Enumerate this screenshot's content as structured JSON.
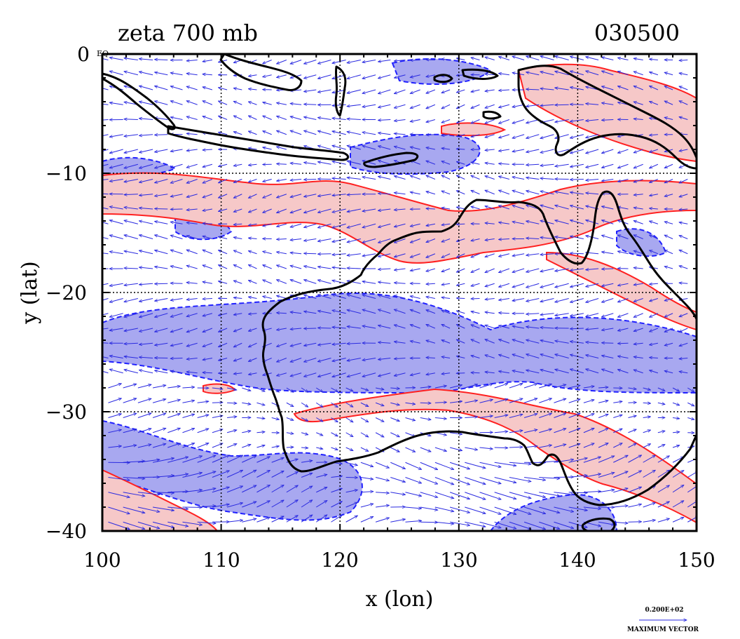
{
  "header": {
    "title": "zeta 700 mb",
    "datecode": "030500"
  },
  "map": {
    "lon_range": [
      100,
      150
    ],
    "lat_range": [
      -40,
      0
    ],
    "xlabel": "x (lon)",
    "ylabel": "y (lat)",
    "x_ticks": [
      "100",
      "110",
      "120",
      "130",
      "140",
      "150"
    ],
    "y_ticks": [
      "0",
      "−10",
      "−20",
      "−30",
      "−40"
    ],
    "zero_suffix": "EQ",
    "grid": true,
    "colors": {
      "positive_fill": "#f6c8c8",
      "positive_line": "#ff2020",
      "negative_fill": "#a8a8f0",
      "negative_line": "#2020ff",
      "vector": "#2a2ae0",
      "coast": "#000000",
      "frame": "#000000"
    }
  },
  "legend": {
    "value": "0.200E+02",
    "label": "MAXIMUM VECTOR"
  }
}
